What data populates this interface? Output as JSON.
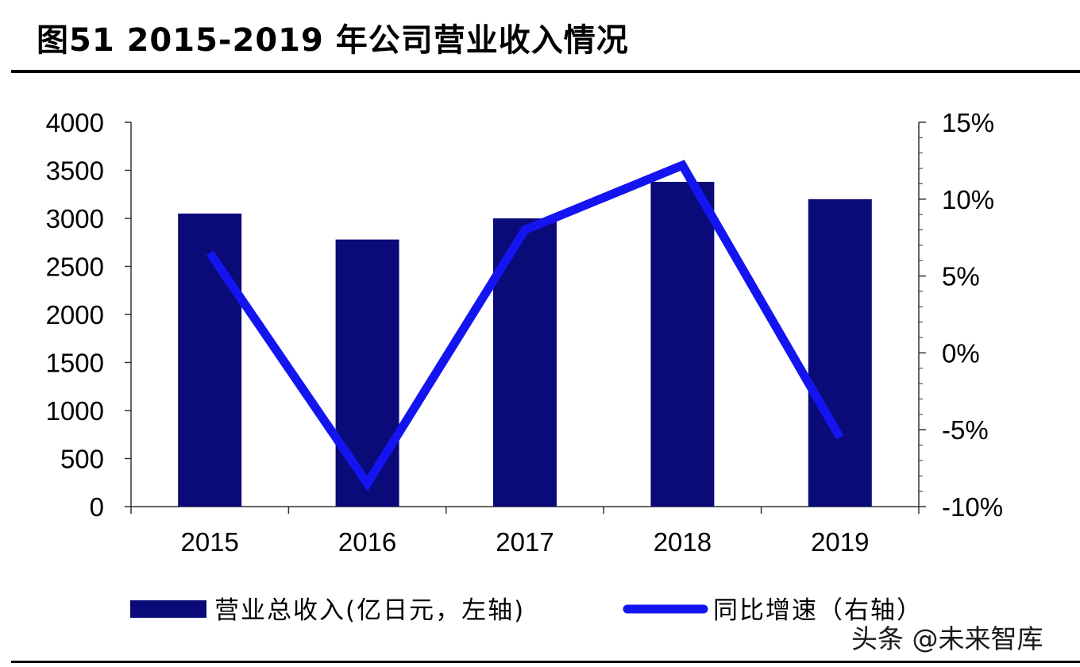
{
  "figure": {
    "title": "图51 2015-2019 年公司营业收入情况"
  },
  "watermark": "头条 @未来智库",
  "chart_data": {
    "type": "bar",
    "categories": [
      "2015",
      "2016",
      "2017",
      "2018",
      "2019"
    ],
    "series": [
      {
        "name": "营业总收入(亿日元，左轴)",
        "type": "bar",
        "axis": "left",
        "values": [
          3050,
          2780,
          3000,
          3380,
          3200
        ],
        "color": "#0a0a78"
      },
      {
        "name": "同比增速（右轴）",
        "type": "line",
        "axis": "right",
        "values": [
          6.5,
          -8.5,
          8.0,
          12.2,
          -5.5
        ],
        "color": "#1414f0"
      }
    ],
    "y_left": {
      "min": 0,
      "max": 4000,
      "ticks": [
        0,
        500,
        1000,
        1500,
        2000,
        2500,
        3000,
        3500,
        4000
      ],
      "tick_labels": [
        "0",
        "500",
        "1000",
        "1500",
        "2000",
        "2500",
        "3000",
        "3500",
        "4000"
      ]
    },
    "y_right": {
      "min": -10,
      "max": 15,
      "ticks": [
        -10,
        -5,
        0,
        5,
        10,
        15
      ],
      "tick_labels": [
        "-10%",
        "-5%",
        "0%",
        "5%",
        "10%",
        "15%"
      ]
    },
    "grid": false,
    "legend_position": "bottom"
  }
}
